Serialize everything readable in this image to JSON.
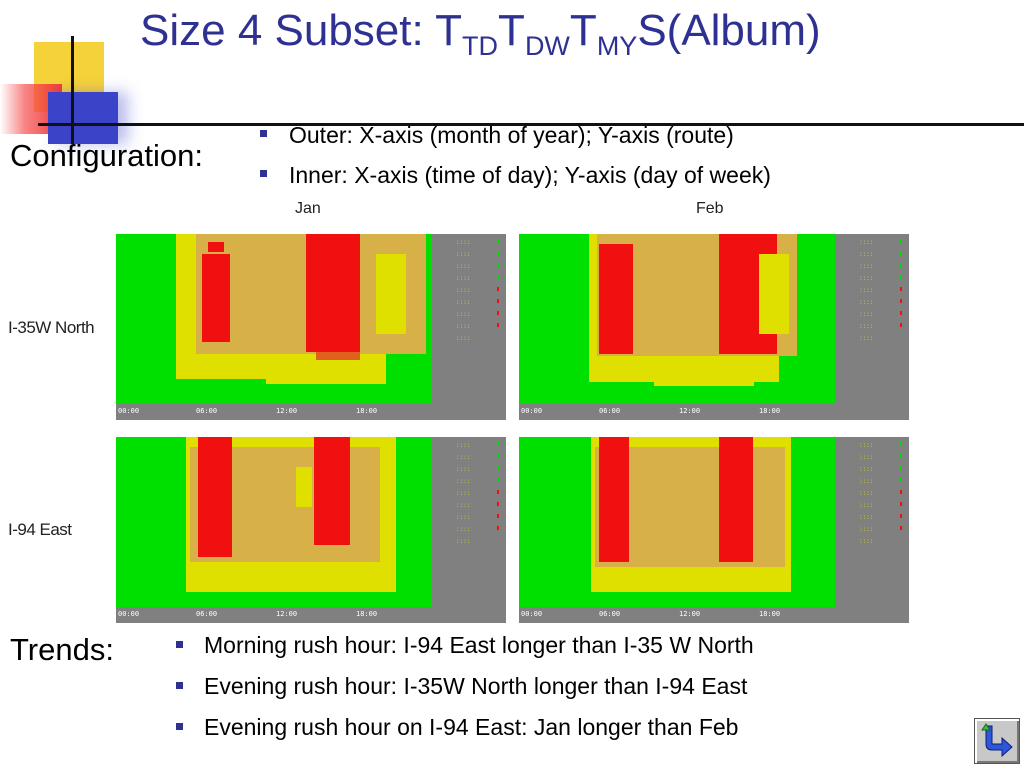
{
  "slide": {
    "title": {
      "prefix": "Size 4 Subset: ",
      "t1": "T",
      "s1": "TD",
      "t2": "T",
      "s2": "DW",
      "t3": "T",
      "s3": "MY",
      "suffix": "S(Album)"
    },
    "configuration_label": "Configuration:",
    "configuration_items": [
      "Outer: X-axis (month of year); Y-axis (route)",
      "Inner:  X-axis (time of day); Y-axis (day of week)"
    ],
    "trends_label": "Trends:",
    "trend_items": [
      "Morning rush hour: I-94 East longer than I-35 W North",
      "Evening rush hour: I-35W North longer than I-94 East",
      "Evening rush hour on I-94 East: Jan longer than Feb"
    ]
  },
  "album": {
    "months": [
      "Jan",
      "Feb"
    ],
    "routes": [
      "I-35W North",
      "I-94 East"
    ]
  },
  "colors": {
    "title": "#2e3192",
    "bullet": "#2e3192",
    "panel_bg": "#808080",
    "green": "#00e000",
    "yellow": "#e0e000",
    "tan": "#d8b048",
    "red": "#f01010"
  },
  "icons": {
    "nav_button": "return-arrow-icon"
  }
}
